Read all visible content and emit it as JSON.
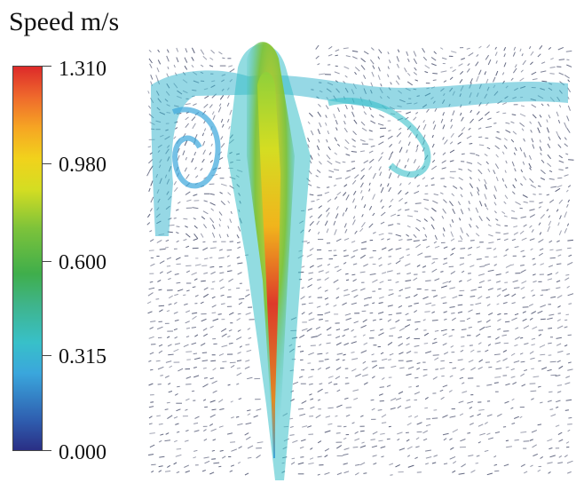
{
  "colorbar": {
    "title": "Speed m/s",
    "ticks": [
      "1.310",
      "0.980",
      "0.600",
      "0.315",
      "0.000"
    ],
    "min": 0.0,
    "max": 1.31,
    "colors": [
      "#2a2f85",
      "#3aa6dc",
      "#3fae4b",
      "#f1d21c",
      "#dd2a2a"
    ]
  },
  "field": {
    "description_type": "velocity-vector-field",
    "background": "#ffffff",
    "sparse_vector_color": "#3a4060"
  }
}
